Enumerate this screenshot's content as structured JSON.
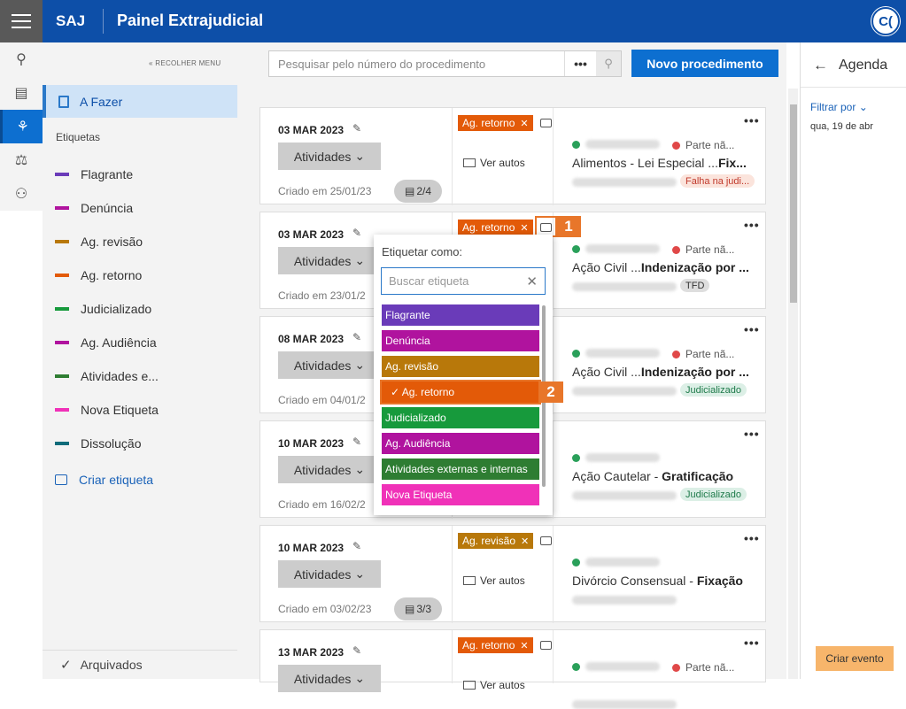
{
  "header": {
    "brand": "SAJ",
    "title": "Painel Extrajudicial",
    "avatar": "C("
  },
  "sidebar": {
    "collapse": "« RECOLHER MENU",
    "active": "A Fazer",
    "section": "Etiquetas",
    "create": "Criar etiqueta",
    "archived": "Arquivados",
    "tags": [
      {
        "label": "Flagrante",
        "color": "#6a3bb9"
      },
      {
        "label": "Denúncia",
        "color": "#b0139e"
      },
      {
        "label": "Ag. revisão",
        "color": "#b8780a"
      },
      {
        "label": "Ag. retorno",
        "color": "#e35a08"
      },
      {
        "label": "Judicializado",
        "color": "#179a3c"
      },
      {
        "label": "Ag. Audiência",
        "color": "#b0139e"
      },
      {
        "label": "Atividades e...",
        "color": "#2e7d32"
      },
      {
        "label": "Nova Etiqueta",
        "color": "#f031b8"
      },
      {
        "label": "Dissolução",
        "color": "#0e6b7a"
      }
    ]
  },
  "search": {
    "placeholder": "Pesquisar pelo número do procedimento",
    "more": "•••"
  },
  "new_button": "Novo procedimento",
  "cards": [
    {
      "date": "03 MAR 2023",
      "activities": "Atividades",
      "created": "Criado em 25/01/23",
      "count": "2/4",
      "badge": "Ag. retorno",
      "badge_color": "#e35a08",
      "ver": "Ver autos",
      "party2": "Parte nã...",
      "type": "Alimentos - Lei Especial ...",
      "type_b": "Fix...",
      "chip": "Falha na judi...",
      "chip_bg": "#fbe4dc",
      "chip_fg": "#c0392b"
    },
    {
      "date": "03 MAR 2023",
      "activities": "Atividades",
      "created": "Criado em 23/01/2",
      "badge": "Ag. retorno",
      "badge_color": "#e35a08",
      "party2": "Parte nã...",
      "type": "Ação Civil ...",
      "type_b": "Indenização por ...",
      "chip": "TFD",
      "chip_bg": "#dedede",
      "chip_fg": "#333"
    },
    {
      "date": "08 MAR 2023",
      "activities": "Atividades",
      "created": "Criado em 04/01/2",
      "party2": "Parte nã...",
      "type": "Ação Civil ...",
      "type_b": "Indenização por ...",
      "chip": "Judicializado",
      "chip_bg": "#dcefe6",
      "chip_fg": "#1e7a4a"
    },
    {
      "date": "10 MAR 2023",
      "activities": "Atividades",
      "created": "Criado em 16/02/2",
      "type": "Ação Cautelar - ",
      "type_b": "Gratificação",
      "chip": "Judicializado",
      "chip_bg": "#dcefe6",
      "chip_fg": "#1e7a4a"
    },
    {
      "date": "10 MAR 2023",
      "activities": "Atividades",
      "created": "Criado em 03/02/23",
      "count": "3/3",
      "badge": "Ag. revisão",
      "badge_color": "#b8780a",
      "ver": "Ver autos",
      "type": "Divórcio Consensual - ",
      "type_b": "Fixação"
    },
    {
      "date": "13 MAR 2023",
      "activities": "Atividades",
      "badge": "Ag. retorno",
      "badge_color": "#e35a08",
      "ver": "Ver autos",
      "party2": "Parte nã..."
    }
  ],
  "dropdown": {
    "title": "Etiquetar como:",
    "placeholder": "Buscar etiqueta",
    "options": [
      {
        "label": "Flagrante",
        "color": "#6a3bb9"
      },
      {
        "label": "Denúncia",
        "color": "#b0139e"
      },
      {
        "label": "Ag. revisão",
        "color": "#b8780a"
      },
      {
        "label": "✓  Ag. retorno",
        "color": "#e35a08"
      },
      {
        "label": "Judicializado",
        "color": "#179a3c"
      },
      {
        "label": "Ag. Audiência",
        "color": "#b0139e"
      },
      {
        "label": "Atividades externas e internas",
        "color": "#2e7d32"
      },
      {
        "label": "Nova Etiqueta",
        "color": "#f031b8"
      }
    ]
  },
  "callouts": [
    "1",
    "2"
  ],
  "agenda": {
    "title": "Agenda",
    "filter": "Filtrar por",
    "date": "qua, 19 de abr",
    "create": "Criar evento"
  }
}
